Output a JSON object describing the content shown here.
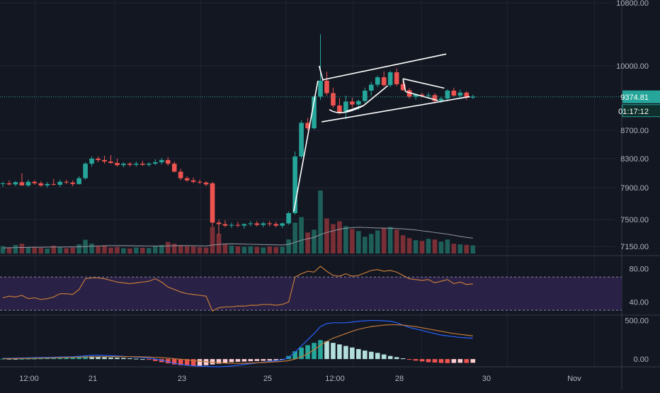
{
  "theme": {
    "background": "#131722",
    "grid": "#1f2433",
    "up": "#26a69a",
    "down": "#ef5350",
    "axis_text": "#b2b5be",
    "price_line": "#26a69a",
    "trendline": "#ffffff",
    "rsi_band": "#2a2146",
    "rsi_line": "#c27a38",
    "macd_line": "#2962ff",
    "signal_line": "#c27a38",
    "vol_ma": "#9598a1"
  },
  "price_axis": {
    "ticks": [
      "10800.00",
      "10000.00",
      "8700.00",
      "8300.00",
      "7900.00",
      "7500.00",
      "7150.00"
    ],
    "current_price": "9374.81",
    "countdown": "01:17:12"
  },
  "rsi_axis": {
    "ticks": [
      "80.00",
      "40.00"
    ]
  },
  "macd_axis": {
    "ticks": [
      "500.00",
      "0.00"
    ]
  },
  "time_axis": {
    "ticks": [
      "12:00",
      "21",
      "23",
      "25",
      "12:00",
      "28",
      "30",
      "Nov"
    ]
  },
  "chart_data": [
    {
      "type": "candlestick",
      "pane": "price",
      "x_unit": "4h bars (Oct 20 – Oct 29)",
      "ylim": [
        7050,
        10850
      ],
      "price_ticks": [
        10800,
        10000,
        8700,
        8300,
        7900,
        7500,
        7150
      ],
      "current_price": 9374.81,
      "countdown": "01:17:12",
      "candles": [
        [
          7950,
          7980,
          7910,
          7960
        ],
        [
          7960,
          8000,
          7930,
          7945
        ],
        [
          7945,
          7990,
          7920,
          7975
        ],
        [
          7975,
          8100,
          7940,
          7930
        ],
        [
          7930,
          8010,
          7910,
          7980
        ],
        [
          7980,
          8000,
          7940,
          7960
        ],
        [
          7960,
          7990,
          7910,
          7930
        ],
        [
          7930,
          7980,
          7900,
          7950
        ],
        [
          7950,
          8020,
          7930,
          7940
        ],
        [
          7940,
          8010,
          7910,
          7980
        ],
        [
          7980,
          8010,
          7950,
          7970
        ],
        [
          7970,
          8000,
          7920,
          7950
        ],
        [
          7950,
          8060,
          7940,
          8030
        ],
        [
          8030,
          8250,
          8010,
          8230
        ],
        [
          8230,
          8330,
          8190,
          8300
        ],
        [
          8300,
          8330,
          8250,
          8280
        ],
        [
          8280,
          8340,
          8230,
          8260
        ],
        [
          8260,
          8350,
          8230,
          8240
        ],
        [
          8240,
          8300,
          8190,
          8210
        ],
        [
          8210,
          8250,
          8180,
          8230
        ],
        [
          8230,
          8250,
          8190,
          8215
        ],
        [
          8215,
          8260,
          8190,
          8230
        ],
        [
          8230,
          8270,
          8200,
          8215
        ],
        [
          8215,
          8250,
          8190,
          8230
        ],
        [
          8230,
          8290,
          8210,
          8250
        ],
        [
          8250,
          8310,
          8220,
          8280
        ],
        [
          8280,
          8320,
          8200,
          8230
        ],
        [
          8230,
          8260,
          8110,
          8120
        ],
        [
          8120,
          8160,
          8000,
          8030
        ],
        [
          8030,
          8060,
          7980,
          8000
        ],
        [
          8000,
          8040,
          7960,
          7980
        ],
        [
          7980,
          8010,
          7950,
          7970
        ],
        [
          7970,
          7990,
          7920,
          7945
        ],
        [
          7960,
          7980,
          7410,
          7460
        ],
        [
          7460,
          7500,
          7300,
          7440
        ],
        [
          7440,
          7490,
          7400,
          7420
        ],
        [
          7420,
          7460,
          7390,
          7430
        ],
        [
          7430,
          7470,
          7400,
          7420
        ],
        [
          7420,
          7450,
          7380,
          7440
        ],
        [
          7440,
          7480,
          7410,
          7450
        ],
        [
          7450,
          7480,
          7410,
          7430
        ],
        [
          7430,
          7470,
          7400,
          7450
        ],
        [
          7450,
          7480,
          7410,
          7440
        ],
        [
          7440,
          7470,
          7400,
          7420
        ],
        [
          7420,
          7460,
          7390,
          7450
        ],
        [
          7450,
          7600,
          7430,
          7580
        ],
        [
          7580,
          8400,
          7560,
          8330
        ],
        [
          8330,
          8900,
          8300,
          8850
        ],
        [
          8850,
          8950,
          8700,
          8740
        ],
        [
          8740,
          9400,
          8720,
          9380
        ],
        [
          9380,
          10400,
          9310,
          9700
        ],
        [
          9700,
          9880,
          9400,
          9450
        ],
        [
          9450,
          9560,
          9150,
          9200
        ],
        [
          9200,
          9350,
          9020,
          9060
        ],
        [
          9060,
          9400,
          8920,
          9280
        ],
        [
          9280,
          9360,
          9160,
          9220
        ],
        [
          9220,
          9320,
          9110,
          9290
        ],
        [
          9290,
          9560,
          9250,
          9500
        ],
        [
          9500,
          9680,
          9400,
          9620
        ],
        [
          9620,
          9800,
          9570,
          9770
        ],
        [
          9770,
          9890,
          9580,
          9610
        ],
        [
          9610,
          9900,
          9570,
          9870
        ],
        [
          9870,
          9950,
          9590,
          9630
        ],
        [
          9630,
          9700,
          9490,
          9510
        ],
        [
          9510,
          9550,
          9340,
          9380
        ],
        [
          9380,
          9440,
          9320,
          9420
        ],
        [
          9420,
          9460,
          9370,
          9400
        ],
        [
          9400,
          9470,
          9350,
          9410
        ],
        [
          9410,
          9450,
          9270,
          9290
        ],
        [
          9290,
          9370,
          9250,
          9340
        ],
        [
          9340,
          9530,
          9300,
          9500
        ],
        [
          9500,
          9560,
          9380,
          9400
        ],
        [
          9400,
          9520,
          9360,
          9460
        ],
        [
          9460,
          9490,
          9310,
          9360
        ],
        [
          9360,
          9420,
          9330,
          9380
        ]
      ],
      "volumes": [
        520,
        380,
        610,
        700,
        450,
        480,
        400,
        350,
        560,
        430,
        380,
        420,
        650,
        980,
        700,
        560,
        590,
        420,
        470,
        380,
        360,
        430,
        410,
        390,
        550,
        600,
        820,
        700,
        600,
        520,
        500,
        450,
        420,
        1900,
        1400,
        700,
        560,
        520,
        480,
        510,
        470,
        430,
        500,
        460,
        480,
        1000,
        2200,
        2600,
        1500,
        1700,
        4500,
        2500,
        2100,
        2300,
        1950,
        1750,
        1600,
        1200,
        1400,
        1650,
        1800,
        1900,
        1700,
        1300,
        1100,
        950,
        900,
        1050,
        1000,
        850,
        1000,
        700,
        650,
        620,
        580
      ],
      "volume_ma": [
        400,
        410,
        420,
        430,
        440,
        450,
        450,
        455,
        460,
        460,
        465,
        470,
        480,
        500,
        520,
        540,
        550,
        560,
        560,
        560,
        555,
        550,
        545,
        540,
        535,
        530,
        545,
        555,
        560,
        560,
        555,
        550,
        540,
        600,
        650,
        680,
        690,
        680,
        670,
        660,
        650,
        640,
        630,
        620,
        610,
        650,
        800,
        950,
        1050,
        1150,
        1350,
        1500,
        1620,
        1730,
        1800,
        1850,
        1870,
        1860,
        1840,
        1820,
        1810,
        1800,
        1780,
        1760,
        1720,
        1680,
        1620,
        1560,
        1500,
        1440,
        1380,
        1300,
        1220,
        1150,
        1100
      ],
      "trendlines": [
        {
          "from": [
            45.8,
            7600
          ],
          "to": [
            49.6,
            9700
          ]
        },
        {
          "from": [
            49.8,
            10000
          ],
          "to": [
            50.4,
            9700
          ]
        },
        {
          "from": [
            50.4,
            9720
          ],
          "to": [
            69.8,
            10150
          ]
        },
        {
          "from": [
            50.2,
            8870
          ],
          "to": [
            73.5,
            9380
          ]
        },
        {
          "from": [
            54.0,
            9080
          ],
          "to": [
            56.8,
            9200
          ]
        },
        {
          "from": [
            56.8,
            9200
          ],
          "to": [
            60.6,
            9600
          ]
        },
        {
          "from": [
            63.0,
            9740
          ],
          "to": [
            69.5,
            9550
          ]
        },
        {
          "from": [
            63.4,
            9480
          ],
          "to": [
            68.5,
            9300
          ]
        },
        {
          "from": [
            63.0,
            9740
          ],
          "to": [
            63.4,
            9480
          ]
        }
      ]
    },
    {
      "type": "line",
      "pane": "rsi",
      "name": "",
      "ylim": [
        25,
        95
      ],
      "band": [
        30,
        70
      ],
      "ticks": [
        80,
        40
      ],
      "values": [
        45,
        47,
        46,
        48,
        44,
        45,
        43,
        44,
        46,
        50,
        50,
        49,
        55,
        68,
        69,
        69,
        68,
        66,
        64,
        63,
        62,
        63,
        64,
        65,
        68,
        64,
        58,
        55,
        52,
        50,
        49,
        48,
        47,
        29,
        33,
        34,
        34,
        35,
        35,
        36,
        36,
        37,
        37,
        36,
        37,
        40,
        70,
        74,
        77,
        76,
        83,
        77,
        72,
        71,
        74,
        71,
        72,
        75,
        78,
        79,
        77,
        78,
        76,
        72,
        68,
        67,
        66,
        67,
        63,
        65,
        67,
        62,
        64,
        61,
        62
      ]
    },
    {
      "type": "histogram",
      "pane": "macd",
      "ylim": [
        -100,
        560
      ],
      "ticks": [
        500,
        0
      ],
      "histogram": [
        5,
        4,
        3,
        3,
        5,
        6,
        8,
        12,
        18,
        24,
        28,
        30,
        33,
        36,
        35,
        30,
        24,
        20,
        18,
        15,
        10,
        5,
        0,
        -10,
        -25,
        -40,
        -55,
        -70,
        -80,
        -85,
        -88,
        -85,
        -80,
        -70,
        -60,
        -50,
        -40,
        -35,
        -32,
        -28,
        -25,
        -22,
        -20,
        -15,
        -8,
        40,
        100,
        150,
        180,
        210,
        245,
        230,
        210,
        190,
        170,
        150,
        130,
        110,
        95,
        80,
        60,
        40,
        25,
        10,
        -5,
        -20,
        -30,
        -40,
        -45,
        -50,
        -52,
        -50,
        -48,
        -50,
        -48
      ],
      "macd_line": [
        10,
        10,
        12,
        14,
        16,
        18,
        20,
        22,
        24,
        26,
        28,
        30,
        35,
        42,
        48,
        50,
        48,
        44,
        40,
        35,
        30,
        25,
        20,
        12,
        0,
        -15,
        -35,
        -55,
        -70,
        -80,
        -88,
        -92,
        -95,
        -98,
        -100,
        -95,
        -90,
        -80,
        -70,
        -60,
        -50,
        -40,
        -30,
        -20,
        -10,
        20,
        90,
        170,
        250,
        330,
        420,
        460,
        470,
        470,
        470,
        480,
        490,
        495,
        500,
        500,
        495,
        490,
        470,
        440,
        410,
        390,
        370,
        350,
        330,
        310,
        300,
        290,
        280,
        275,
        270
      ],
      "signal_line": [
        5,
        6,
        7,
        8,
        9,
        10,
        12,
        14,
        16,
        18,
        20,
        22,
        24,
        26,
        28,
        30,
        31,
        32,
        32,
        32,
        31,
        30,
        28,
        26,
        22,
        18,
        12,
        5,
        -2,
        -10,
        -20,
        -28,
        -35,
        -42,
        -48,
        -52,
        -54,
        -55,
        -54,
        -52,
        -48,
        -44,
        -40,
        -35,
        -30,
        -20,
        0,
        30,
        70,
        120,
        180,
        230,
        270,
        300,
        330,
        360,
        385,
        405,
        420,
        430,
        440,
        445,
        445,
        440,
        430,
        420,
        405,
        390,
        375,
        360,
        345,
        330,
        320,
        310,
        300
      ]
    }
  ]
}
